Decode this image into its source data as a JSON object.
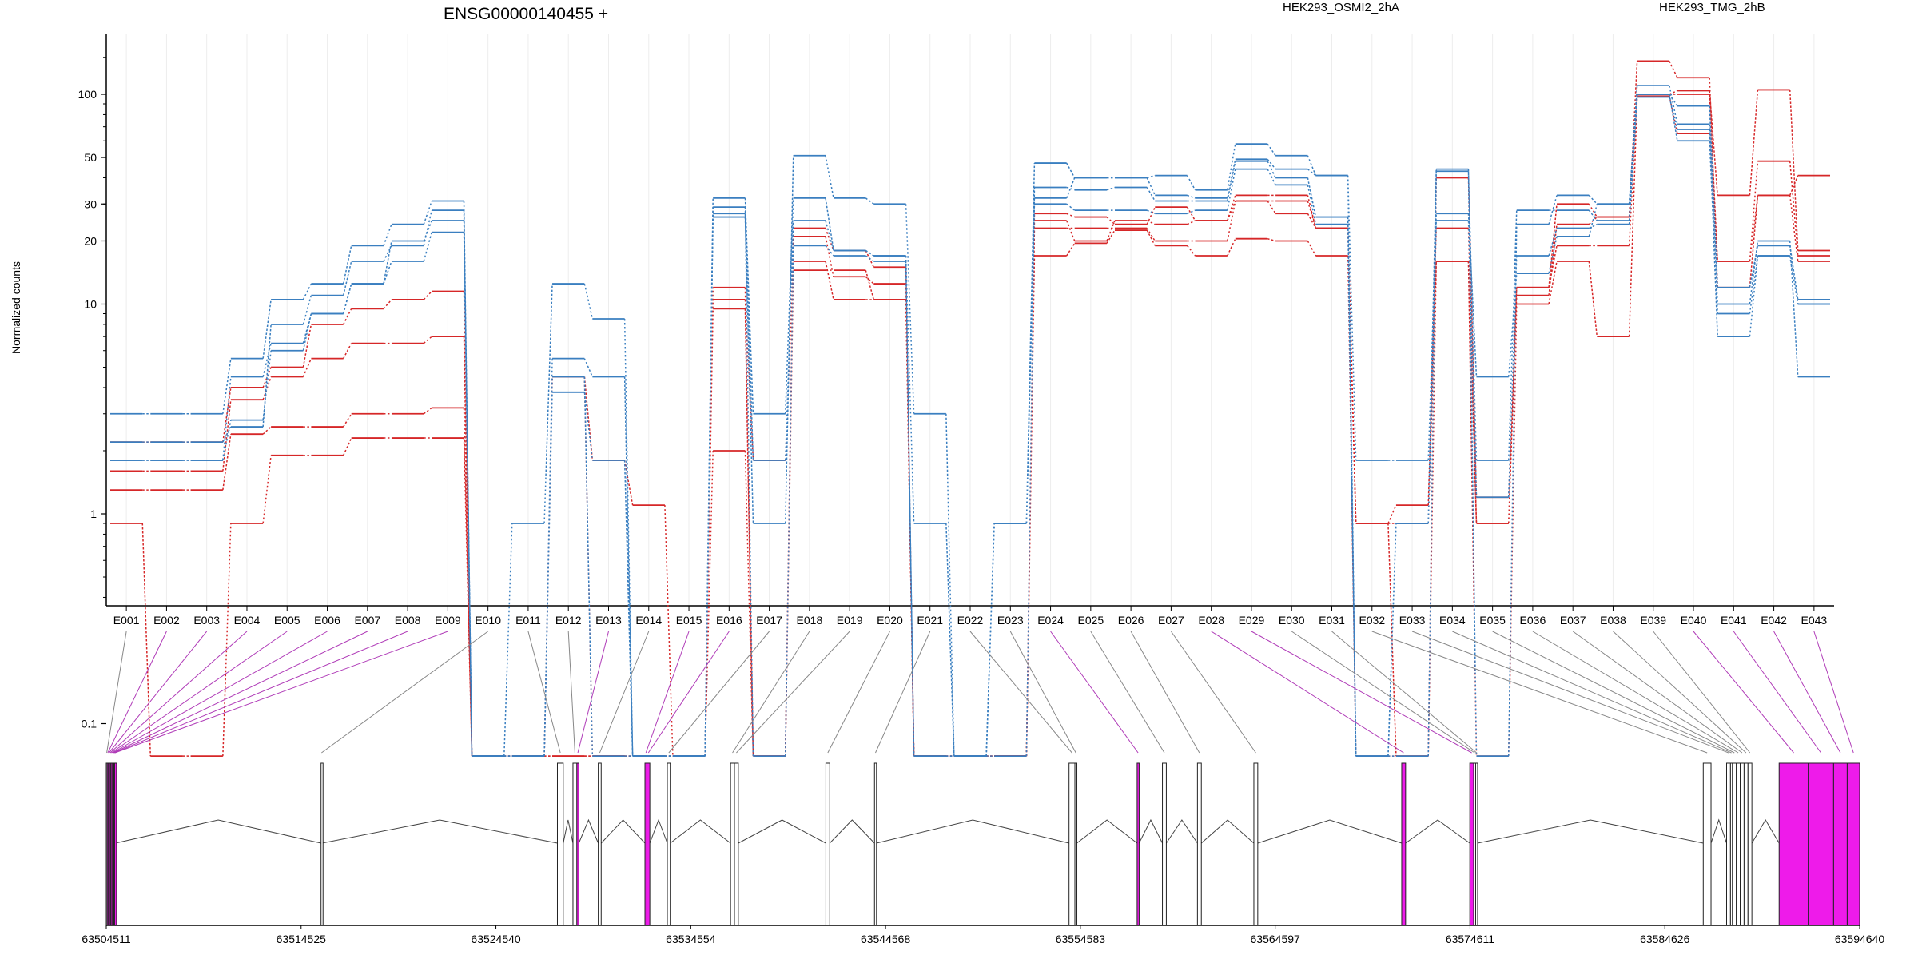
{
  "gene_title": "ENSG00000140455 +",
  "ylabel": "Normalized counts",
  "colors": {
    "osmi": "#d62728",
    "tmg": "#3a7fc0",
    "highlight": "#ee1bea",
    "highlight_line": "#b03cb8",
    "plain_line": "#888888",
    "axis": "#000000"
  },
  "chart_data": {
    "type": "line",
    "yscale": "log",
    "ylim": [
      0.08,
      180
    ],
    "yticks": [
      {
        "v": 0.1,
        "label": "0.1"
      },
      {
        "v": 1,
        "label": "1"
      },
      {
        "v": 10,
        "label": "10"
      },
      {
        "v": 20,
        "label": "20"
      },
      {
        "v": 30,
        "label": "30"
      },
      {
        "v": 50,
        "label": "50"
      },
      {
        "v": 100,
        "label": "100"
      }
    ],
    "categories": [
      "E001",
      "E002",
      "E003",
      "E004",
      "E005",
      "E006",
      "E007",
      "E008",
      "E009",
      "E010",
      "E011",
      "E012",
      "E013",
      "E014",
      "E015",
      "E016",
      "E017",
      "E018",
      "E019",
      "E020",
      "E021",
      "E022",
      "E023",
      "E024",
      "E025",
      "E026",
      "E027",
      "E028",
      "E029",
      "E030",
      "E031",
      "E032",
      "E033",
      "E034",
      "E035",
      "E036",
      "E037",
      "E038",
      "E039",
      "E040",
      "E041",
      "E042",
      "E043"
    ],
    "legend": [
      {
        "label": "HEK293_OSMI2_2hA",
        "color": "#d62728"
      },
      {
        "label": "HEK293_TMG_2hB",
        "color": "#3a7fc0"
      }
    ],
    "series": [
      {
        "group": "osmi",
        "values": [
          0.9,
          0.07,
          0.07,
          0.9,
          1.9,
          1.9,
          2.3,
          2.3,
          2.3,
          0.07,
          0.07,
          0.07,
          0.07,
          0.07,
          0.07,
          2,
          0.07,
          14.5,
          14.5,
          10.5,
          0.07,
          0.07,
          0.07,
          17,
          19.5,
          22.5,
          19,
          17,
          20.5,
          20,
          17,
          0.07,
          0.07,
          16,
          0.07,
          10,
          16,
          7,
          98,
          65,
          16,
          33,
          16
        ]
      },
      {
        "group": "osmi",
        "values": [
          1.6,
          1.6,
          1.6,
          3.5,
          4.5,
          5.5,
          6.5,
          6.5,
          7,
          0.07,
          0.07,
          4.5,
          1.8,
          1.1,
          0.07,
          10.5,
          1.8,
          16,
          10.5,
          10.5,
          0.07,
          0.07,
          0.07,
          23,
          23,
          23,
          20,
          20,
          31,
          27,
          23,
          0.9,
          1.1,
          23,
          0.9,
          12,
          19,
          19,
          100,
          100,
          16,
          48,
          17
        ]
      },
      {
        "group": "osmi",
        "values": [
          2.2,
          2.2,
          2.2,
          4,
          5,
          8,
          9.5,
          10.5,
          11.5,
          0.07,
          0.07,
          4.5,
          0.07,
          0.07,
          0.07,
          12,
          0.07,
          21,
          13.5,
          12.5,
          0.07,
          0.07,
          0.07,
          27,
          26,
          24,
          29,
          25,
          33,
          33,
          23,
          0.9,
          0.07,
          40,
          1.2,
          12,
          30,
          26,
          100,
          104,
          33,
          105,
          18
        ]
      },
      {
        "group": "osmi",
        "values": [
          1.3,
          1.3,
          1.3,
          2.4,
          2.6,
          2.6,
          3,
          3,
          3.2,
          0.07,
          0.07,
          0.07,
          0.07,
          0.07,
          0.07,
          9.5,
          0.07,
          23,
          18,
          15,
          0.07,
          0.07,
          0.07,
          25,
          20,
          25,
          24,
          25,
          31,
          31,
          23,
          0.9,
          0.9,
          16,
          0.9,
          11,
          24,
          26,
          144,
          120,
          12,
          33,
          41
        ]
      },
      {
        "group": "tmg",
        "values": [
          3,
          3,
          3,
          5.5,
          10.5,
          12.5,
          19,
          24,
          31,
          0.07,
          0.9,
          12.5,
          8.5,
          0.07,
          0.07,
          27,
          1.8,
          25,
          18,
          17,
          0.9,
          0.07,
          0.9,
          47,
          40,
          40,
          41,
          35,
          58,
          51,
          41,
          1.8,
          1.8,
          27,
          4.5,
          14,
          21,
          30,
          110,
          72,
          10,
          20,
          4.5
        ]
      },
      {
        "group": "tmg",
        "values": [
          1.8,
          1.8,
          1.8,
          4.5,
          6.5,
          9,
          12.5,
          20,
          25,
          0.07,
          0.07,
          4.5,
          0.07,
          0.07,
          0.07,
          26,
          0.9,
          51,
          32,
          30,
          3,
          0.07,
          0.9,
          32,
          40,
          40,
          33,
          32,
          49,
          44,
          41,
          0.07,
          0.9,
          44,
          0.07,
          24,
          33,
          30,
          100,
          88,
          12,
          19,
          10.5
        ]
      },
      {
        "group": "tmg",
        "values": [
          2.2,
          2.2,
          2.2,
          2.6,
          8,
          11,
          16,
          19,
          28,
          0.07,
          0.07,
          3.8,
          1.8,
          0.07,
          0.07,
          32,
          3,
          32,
          18,
          17,
          0.07,
          0.07,
          0.07,
          36,
          35,
          36,
          31,
          31,
          48,
          40,
          26,
          0.07,
          0.07,
          43,
          1.8,
          28,
          28,
          25,
          100,
          60,
          9,
          17,
          10
        ]
      },
      {
        "group": "tmg",
        "values": [
          1.8,
          1.8,
          1.8,
          2.8,
          6,
          9,
          12.5,
          16,
          22,
          0.07,
          0.07,
          5.5,
          4.5,
          0.07,
          0.07,
          29,
          0.07,
          19,
          17,
          16,
          0.07,
          0.07,
          0.9,
          30,
          28,
          28,
          27,
          28,
          44,
          37,
          24,
          0.07,
          0.9,
          25,
          1.2,
          17,
          23,
          24,
          97,
          68,
          7,
          17,
          10
        ]
      }
    ],
    "coord_ticks": [
      "63504511",
      "63514525",
      "63524540",
      "63534554",
      "63544568",
      "63554583",
      "63564597",
      "63574611",
      "63584626",
      "63594640"
    ],
    "exons": [
      {
        "id": "E001",
        "start": 63504511,
        "end": 63504560,
        "hl": false
      },
      {
        "id": "E002",
        "start": 63504560,
        "end": 63504620,
        "hl": true
      },
      {
        "id": "E003",
        "start": 63504620,
        "end": 63504680,
        "hl": true
      },
      {
        "id": "E004",
        "start": 63504680,
        "end": 63504740,
        "hl": true
      },
      {
        "id": "E005",
        "start": 63504740,
        "end": 63504800,
        "hl": true
      },
      {
        "id": "E006",
        "start": 63504800,
        "end": 63504850,
        "hl": true
      },
      {
        "id": "E007",
        "start": 63504850,
        "end": 63504900,
        "hl": true
      },
      {
        "id": "E008",
        "start": 63504900,
        "end": 63504940,
        "hl": true
      },
      {
        "id": "E009",
        "start": 63504940,
        "end": 63504980,
        "hl": true
      },
      {
        "id": "E010",
        "start": 63515550,
        "end": 63515600,
        "hl": false
      },
      {
        "id": "E011",
        "start": 63527700,
        "end": 63528000,
        "hl": false
      },
      {
        "id": "E012",
        "start": 63528500,
        "end": 63528700,
        "hl": false
      },
      {
        "id": "E013",
        "start": 63528700,
        "end": 63528800,
        "hl": true
      },
      {
        "id": "E014",
        "start": 63529800,
        "end": 63529950,
        "hl": false
      },
      {
        "id": "E015",
        "start": 63532200,
        "end": 63532300,
        "hl": true
      },
      {
        "id": "E016",
        "start": 63532300,
        "end": 63532450,
        "hl": true
      },
      {
        "id": "E017",
        "start": 63533350,
        "end": 63533500,
        "hl": false
      },
      {
        "id": "E018",
        "start": 63536600,
        "end": 63536800,
        "hl": false
      },
      {
        "id": "E019",
        "start": 63536800,
        "end": 63537000,
        "hl": false
      },
      {
        "id": "E020",
        "start": 63541500,
        "end": 63541700,
        "hl": false
      },
      {
        "id": "E021",
        "start": 63544000,
        "end": 63544100,
        "hl": false
      },
      {
        "id": "E022",
        "start": 63554000,
        "end": 63554300,
        "hl": false
      },
      {
        "id": "E023",
        "start": 63554300,
        "end": 63554400,
        "hl": false
      },
      {
        "id": "E024",
        "start": 63557500,
        "end": 63557600,
        "hl": true
      },
      {
        "id": "E025",
        "start": 63558800,
        "end": 63559000,
        "hl": false
      },
      {
        "id": "E026",
        "start": 63560600,
        "end": 63560800,
        "hl": false
      },
      {
        "id": "E027",
        "start": 63563500,
        "end": 63563700,
        "hl": false
      },
      {
        "id": "E028",
        "start": 63571100,
        "end": 63571300,
        "hl": true
      },
      {
        "id": "E029",
        "start": 63574600,
        "end": 63574800,
        "hl": true
      },
      {
        "id": "E030",
        "start": 63574800,
        "end": 63574900,
        "hl": false
      },
      {
        "id": "E031",
        "start": 63574900,
        "end": 63575000,
        "hl": false
      },
      {
        "id": "E032",
        "start": 63586600,
        "end": 63587000,
        "hl": false
      },
      {
        "id": "E033",
        "start": 63587800,
        "end": 63588000,
        "hl": false
      },
      {
        "id": "E034",
        "start": 63588000,
        "end": 63588100,
        "hl": false
      },
      {
        "id": "E035",
        "start": 63588100,
        "end": 63588300,
        "hl": false
      },
      {
        "id": "E036",
        "start": 63588300,
        "end": 63588500,
        "hl": false
      },
      {
        "id": "E037",
        "start": 63588500,
        "end": 63588700,
        "hl": false
      },
      {
        "id": "E038",
        "start": 63588700,
        "end": 63588900,
        "hl": false
      },
      {
        "id": "E039",
        "start": 63588900,
        "end": 63589100,
        "hl": false
      },
      {
        "id": "E040",
        "start": 63590500,
        "end": 63592000,
        "hl": true
      },
      {
        "id": "E041",
        "start": 63592000,
        "end": 63593300,
        "hl": true
      },
      {
        "id": "E042",
        "start": 63593300,
        "end": 63594000,
        "hl": true
      },
      {
        "id": "E043",
        "start": 63594000,
        "end": 63594640,
        "hl": true
      }
    ]
  }
}
